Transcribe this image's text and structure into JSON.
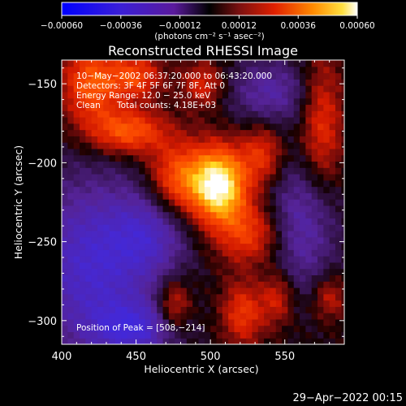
{
  "chart_data": {
    "type": "heatmap",
    "title": "Reconstructed RHESSI Image",
    "xlabel": "Heliocentric X (arcsec)",
    "ylabel": "Heliocentric Y (arcsec)",
    "xlim": [
      400,
      590
    ],
    "ylim": [
      -315,
      -135
    ],
    "x_ticks": [
      400,
      450,
      500,
      550
    ],
    "y_ticks": [
      -150,
      -200,
      -250,
      -300
    ],
    "x_tick_labels": [
      "400",
      "450",
      "500",
      "550"
    ],
    "y_tick_labels": [
      "−150",
      "−200",
      "−250",
      "−300"
    ],
    "colorbar": {
      "colormap": "IDL color table 3-like (blue-purple-red-orange-yellow-white)",
      "range": [
        -0.0006,
        0.0006
      ],
      "tick_labels": [
        "−0.00060",
        "−0.00036",
        "−0.00012",
        "0.00012",
        "0.00036",
        "0.00060"
      ],
      "units": "(photons cm⁻² s⁻¹ asec⁻²)"
    },
    "annotations": {
      "time_range": "10−May−2002 06:37:20.000 to 06:43:20.000",
      "detectors": "Detectors: 3F 4F 5F 6F 7F 8F, Att 0",
      "energy_range": "Energy Range: 12.0 − 25.0 keV",
      "clean": "Clean",
      "total_counts": "Total counts: 4.18E+03",
      "peak": "Position of Peak = [508,−214]"
    },
    "peak_position": [
      508,
      -214
    ],
    "sources": [
      {
        "x": 506,
        "y": -214,
        "amp": 1.0,
        "sx": 13,
        "sy": 17
      },
      {
        "x": 478,
        "y": -210,
        "amp": 0.55,
        "sx": 14,
        "sy": 16
      },
      {
        "x": 528,
        "y": -245,
        "amp": 0.45,
        "sx": 16,
        "sy": 14
      },
      {
        "x": 522,
        "y": -295,
        "amp": 0.42,
        "sx": 10,
        "sy": 14
      },
      {
        "x": 475,
        "y": -290,
        "amp": 0.4,
        "sx": 8,
        "sy": 12
      },
      {
        "x": 445,
        "y": -180,
        "amp": 0.55,
        "sx": 18,
        "sy": 10
      },
      {
        "x": 420,
        "y": -150,
        "amp": 0.55,
        "sx": 14,
        "sy": 18
      },
      {
        "x": 450,
        "y": -145,
        "amp": 0.45,
        "sx": 12,
        "sy": 10
      },
      {
        "x": 495,
        "y": -150,
        "amp": 0.35,
        "sx": 10,
        "sy": 10
      },
      {
        "x": 535,
        "y": -195,
        "amp": 0.4,
        "sx": 10,
        "sy": 14
      },
      {
        "x": 575,
        "y": -175,
        "amp": 0.4,
        "sx": 10,
        "sy": 30
      },
      {
        "x": 545,
        "y": -285,
        "amp": 0.35,
        "sx": 8,
        "sy": 12
      },
      {
        "x": 580,
        "y": -285,
        "amp": 0.3,
        "sx": 8,
        "sy": 10
      }
    ],
    "negative_regions": [
      {
        "x": 420,
        "y": -265,
        "amp": 0.55,
        "sx": 30,
        "sy": 40
      },
      {
        "x": 460,
        "y": -245,
        "amp": 0.35,
        "sx": 18,
        "sy": 20
      },
      {
        "x": 560,
        "y": -240,
        "amp": 0.4,
        "sx": 18,
        "sy": 30
      },
      {
        "x": 540,
        "y": -155,
        "amp": 0.35,
        "sx": 20,
        "sy": 15
      },
      {
        "x": 450,
        "y": -305,
        "amp": 0.45,
        "sx": 20,
        "sy": 12
      }
    ]
  },
  "footer": {
    "timestamp": "29−Apr−2022 00:15"
  }
}
